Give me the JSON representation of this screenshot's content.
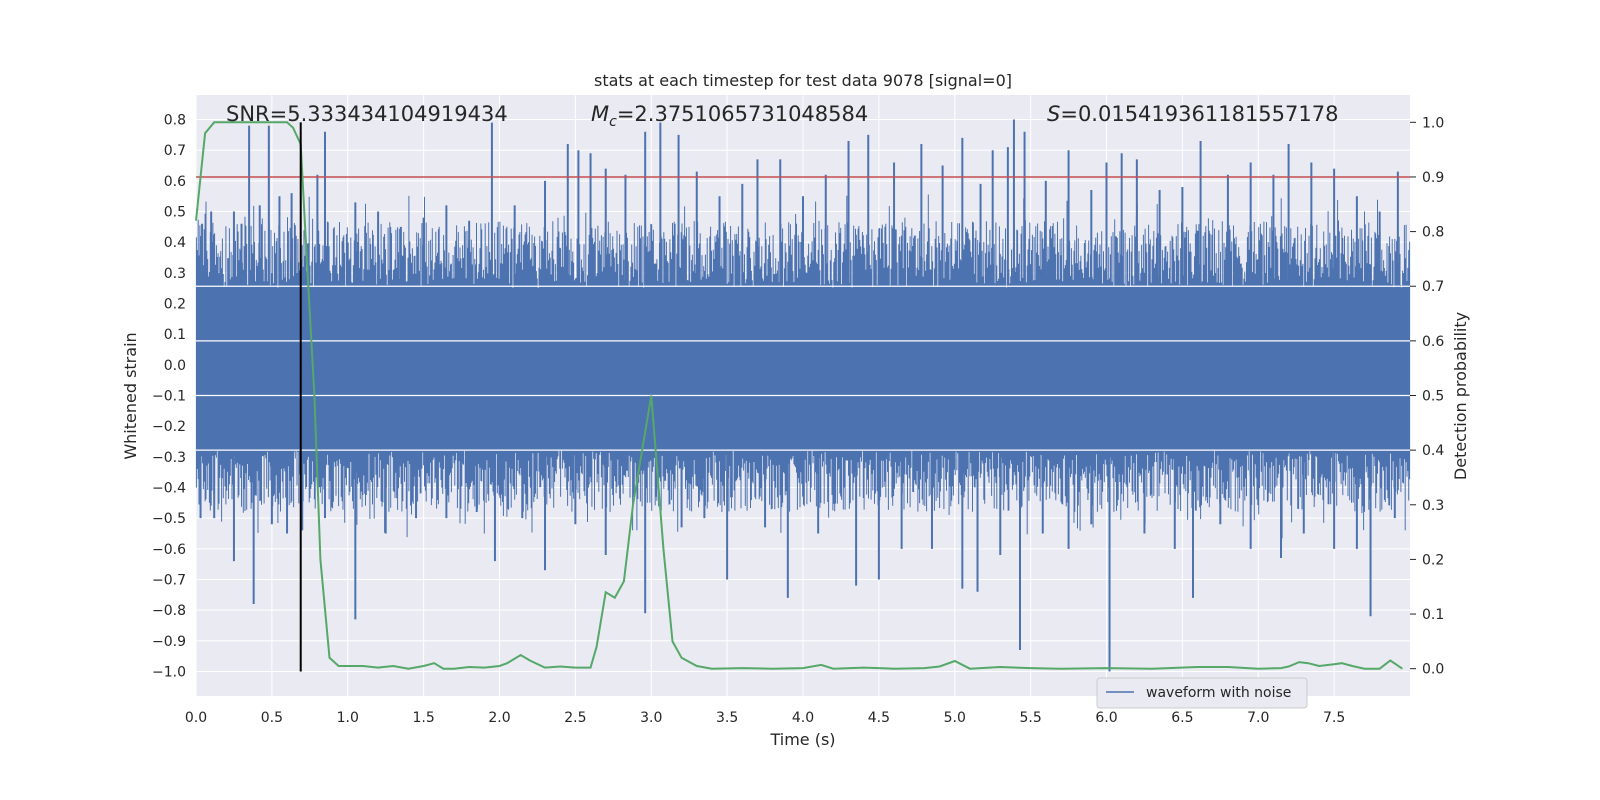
{
  "chart_data": {
    "type": "line",
    "title": "stats at each timestep for test data 9078 [signal=0]",
    "xlabel": "Time (s)",
    "ylabel": "Whitened strain",
    "y2label": "Detection probability",
    "xlim": [
      0.0,
      8.0
    ],
    "ylim": [
      -1.08,
      0.88
    ],
    "y2lim": [
      -0.05,
      1.05
    ],
    "grid": true,
    "x_ticks": [
      "0.0",
      "0.5",
      "1.0",
      "1.5",
      "2.0",
      "2.5",
      "3.0",
      "3.5",
      "4.0",
      "4.5",
      "5.0",
      "5.5",
      "6.0",
      "6.5",
      "7.0",
      "7.5"
    ],
    "y_ticks": [
      "0.8",
      "0.7",
      "0.6",
      "0.5",
      "0.4",
      "0.3",
      "0.2",
      "0.1",
      "0.0",
      "−0.1",
      "−0.2",
      "−0.3",
      "−0.4",
      "−0.5",
      "−0.6",
      "−0.7",
      "−0.8",
      "−0.9",
      "−1.0"
    ],
    "y2_ticks": [
      "1.0",
      "0.9",
      "0.8",
      "0.7",
      "0.6",
      "0.5",
      "0.4",
      "0.3",
      "0.2",
      "0.1",
      "0.0"
    ],
    "annotations": {
      "snr": "SNR=5.333434104919434",
      "mc_symbol": "M",
      "mc_sub": "c",
      "mc_value": "=2.3751065731048584",
      "s_symbol": "S",
      "s_value": "=0.015419361181557178"
    },
    "legend": {
      "label": "waveform with noise",
      "location": "lower-right"
    },
    "threshold": {
      "y2": 0.9,
      "color": "#c44e52"
    },
    "marker_time": 0.69,
    "waveform": {
      "name": "waveform with noise",
      "color": "#4c72b0",
      "band": [
        -0.28,
        0.25
      ],
      "peaks_up": [
        [
          0.04,
          0.46
        ],
        [
          0.1,
          0.5
        ],
        [
          0.25,
          0.5
        ],
        [
          0.3,
          0.46
        ],
        [
          0.35,
          0.78
        ],
        [
          0.42,
          0.52
        ],
        [
          0.48,
          0.78
        ],
        [
          0.55,
          0.55
        ],
        [
          0.63,
          0.56
        ],
        [
          0.8,
          0.62
        ],
        [
          0.85,
          0.76
        ],
        [
          1.05,
          0.53
        ],
        [
          1.2,
          0.5
        ],
        [
          1.35,
          0.45
        ],
        [
          1.5,
          0.48
        ],
        [
          1.65,
          0.52
        ],
        [
          1.8,
          0.47
        ],
        [
          1.95,
          0.79
        ],
        [
          2.1,
          0.52
        ],
        [
          2.3,
          0.6
        ],
        [
          2.45,
          0.72
        ],
        [
          2.52,
          0.7
        ],
        [
          2.6,
          0.69
        ],
        [
          2.7,
          0.64
        ],
        [
          2.83,
          0.62
        ],
        [
          2.96,
          0.76
        ],
        [
          3.06,
          0.79
        ],
        [
          3.18,
          0.75
        ],
        [
          3.3,
          0.63
        ],
        [
          3.45,
          0.55
        ],
        [
          3.6,
          0.59
        ],
        [
          3.7,
          0.67
        ],
        [
          3.85,
          0.67
        ],
        [
          4.0,
          0.55
        ],
        [
          4.15,
          0.62
        ],
        [
          4.3,
          0.73
        ],
        [
          4.43,
          0.75
        ],
        [
          4.6,
          0.66
        ],
        [
          4.78,
          0.72
        ],
        [
          4.92,
          0.65
        ],
        [
          5.05,
          0.74
        ],
        [
          5.17,
          0.59
        ],
        [
          5.25,
          0.7
        ],
        [
          5.35,
          0.71
        ],
        [
          5.39,
          0.8
        ],
        [
          5.46,
          0.76
        ],
        [
          5.6,
          0.6
        ],
        [
          5.75,
          0.7
        ],
        [
          5.9,
          0.57
        ],
        [
          6.0,
          0.66
        ],
        [
          6.1,
          0.69
        ],
        [
          6.2,
          0.67
        ],
        [
          6.35,
          0.57
        ],
        [
          6.5,
          0.58
        ],
        [
          6.62,
          0.73
        ],
        [
          6.8,
          0.62
        ],
        [
          6.95,
          0.66
        ],
        [
          7.1,
          0.62
        ],
        [
          7.2,
          0.72
        ],
        [
          7.35,
          0.66
        ],
        [
          7.5,
          0.64
        ],
        [
          7.65,
          0.55
        ],
        [
          7.8,
          0.5
        ],
        [
          7.92,
          0.63
        ]
      ],
      "peaks_down": [
        [
          0.03,
          -0.5
        ],
        [
          0.12,
          -0.5
        ],
        [
          0.25,
          -0.64
        ],
        [
          0.38,
          -0.78
        ],
        [
          0.5,
          -0.52
        ],
        [
          0.6,
          -0.55
        ],
        [
          0.7,
          -0.54
        ],
        [
          0.85,
          -0.5
        ],
        [
          1.05,
          -0.83
        ],
        [
          1.25,
          -0.55
        ],
        [
          1.45,
          -0.5
        ],
        [
          1.65,
          -0.5
        ],
        [
          1.85,
          -0.48
        ],
        [
          1.97,
          -0.64
        ],
        [
          2.15,
          -0.5
        ],
        [
          2.3,
          -0.67
        ],
        [
          2.5,
          -0.52
        ],
        [
          2.7,
          -0.62
        ],
        [
          2.96,
          -0.81
        ],
        [
          3.2,
          -0.53
        ],
        [
          3.35,
          -0.5
        ],
        [
          3.5,
          -0.7
        ],
        [
          3.75,
          -0.53
        ],
        [
          3.9,
          -0.76
        ],
        [
          4.1,
          -0.55
        ],
        [
          4.35,
          -0.72
        ],
        [
          4.5,
          -0.7
        ],
        [
          4.65,
          -0.6
        ],
        [
          4.85,
          -0.6
        ],
        [
          5.05,
          -0.73
        ],
        [
          5.15,
          -0.74
        ],
        [
          5.3,
          -0.62
        ],
        [
          5.43,
          -0.93
        ],
        [
          5.58,
          -0.55
        ],
        [
          5.75,
          -0.6
        ],
        [
          5.9,
          -0.52
        ],
        [
          6.02,
          -1.0
        ],
        [
          6.25,
          -0.55
        ],
        [
          6.45,
          -0.6
        ],
        [
          6.57,
          -0.76
        ],
        [
          6.75,
          -0.52
        ],
        [
          6.95,
          -0.6
        ],
        [
          7.15,
          -0.63
        ],
        [
          7.3,
          -0.55
        ],
        [
          7.5,
          -0.6
        ],
        [
          7.65,
          -0.6
        ],
        [
          7.74,
          -0.82
        ],
        [
          7.9,
          -0.5
        ]
      ]
    },
    "probability": {
      "name": "Detection probability",
      "color": "#55a868",
      "x": [
        0.0,
        0.06,
        0.12,
        0.2,
        0.3,
        0.4,
        0.5,
        0.6,
        0.64,
        0.69,
        0.73,
        0.78,
        0.82,
        0.88,
        0.94,
        1.0,
        1.1,
        1.2,
        1.3,
        1.4,
        1.5,
        1.57,
        1.63,
        1.7,
        1.8,
        1.9,
        2.0,
        2.05,
        2.14,
        2.2,
        2.3,
        2.4,
        2.5,
        2.6,
        2.64,
        2.7,
        2.76,
        2.82,
        2.88,
        3.0,
        3.08,
        3.14,
        3.2,
        3.3,
        3.4,
        3.6,
        3.8,
        4.0,
        4.12,
        4.2,
        4.4,
        4.6,
        4.8,
        4.9,
        5.0,
        5.1,
        5.3,
        5.5,
        5.7,
        6.0,
        6.3,
        6.6,
        6.8,
        7.0,
        7.15,
        7.2,
        7.27,
        7.33,
        7.4,
        7.5,
        7.55,
        7.62,
        7.7,
        7.8,
        7.87,
        7.95
      ],
      "y": [
        0.82,
        0.98,
        1.0,
        1.0,
        1.0,
        1.0,
        1.0,
        1.0,
        0.99,
        0.96,
        0.75,
        0.5,
        0.2,
        0.02,
        0.005,
        0.005,
        0.005,
        0.002,
        0.005,
        0.0,
        0.005,
        0.01,
        0.0,
        0.0,
        0.003,
        0.002,
        0.005,
        0.01,
        0.025,
        0.015,
        0.002,
        0.004,
        0.002,
        0.002,
        0.04,
        0.14,
        0.13,
        0.16,
        0.3,
        0.5,
        0.22,
        0.05,
        0.02,
        0.005,
        0.0,
        0.001,
        0.0,
        0.001,
        0.007,
        0.0,
        0.002,
        0.0,
        0.001,
        0.004,
        0.014,
        0.0,
        0.003,
        0.001,
        0.0,
        0.001,
        0.0,
        0.003,
        0.003,
        0.0,
        0.001,
        0.004,
        0.012,
        0.01,
        0.005,
        0.008,
        0.01,
        0.005,
        0.0,
        0.0,
        0.015,
        0.0
      ]
    }
  }
}
